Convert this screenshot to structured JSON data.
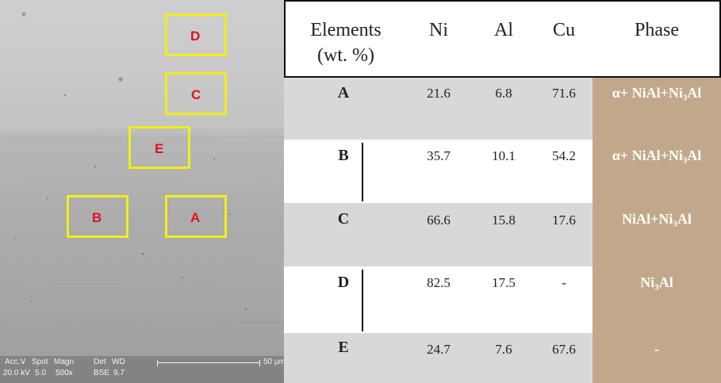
{
  "micrograph": {
    "regions": [
      {
        "id": "D"
      },
      {
        "id": "C"
      },
      {
        "id": "E"
      },
      {
        "id": "B"
      },
      {
        "id": "A"
      }
    ],
    "info_bar": {
      "acc_v": "Acc.V",
      "acc_v_value": "20.0 kV",
      "spot": "Spot",
      "spot_value": "5.0",
      "magn": "Magn",
      "magn_value": "500x",
      "det": "Det",
      "det_value": "BSE",
      "wd": "WD",
      "wd_value": "9.7",
      "scale_label": "50 μm"
    }
  },
  "table": {
    "headers": {
      "elements_line1": "Elements",
      "elements_line2": "(wt. %)",
      "ni": "Ni",
      "al": "Al",
      "cu": "Cu",
      "phase": "Phase"
    },
    "rows": [
      {
        "element": "A",
        "ni": "21.6",
        "al": "6.8",
        "cu": "71.6",
        "phase": "α+ NiAl+Ni₃Al"
      },
      {
        "element": "B",
        "ni": "35.7",
        "al": "10.1",
        "cu": "54.2",
        "phase": "α+ NiAl+Ni₃Al"
      },
      {
        "element": "C",
        "ni": "66.6",
        "al": "15.8",
        "cu": "17.6",
        "phase": "NiAl+Ni₃Al"
      },
      {
        "element": "D",
        "ni": "82.5",
        "al": "17.5",
        "cu": "-",
        "phase": "Ni₃Al"
      },
      {
        "element": "E",
        "ni": "24.7",
        "al": "7.6",
        "cu": "67.6",
        "phase": "-"
      }
    ],
    "colors": {
      "phase_bg": "#c2a88a",
      "shaded_row": "#d8d8d8",
      "region_box": "#f2ee16",
      "region_label": "#e0121b"
    }
  }
}
